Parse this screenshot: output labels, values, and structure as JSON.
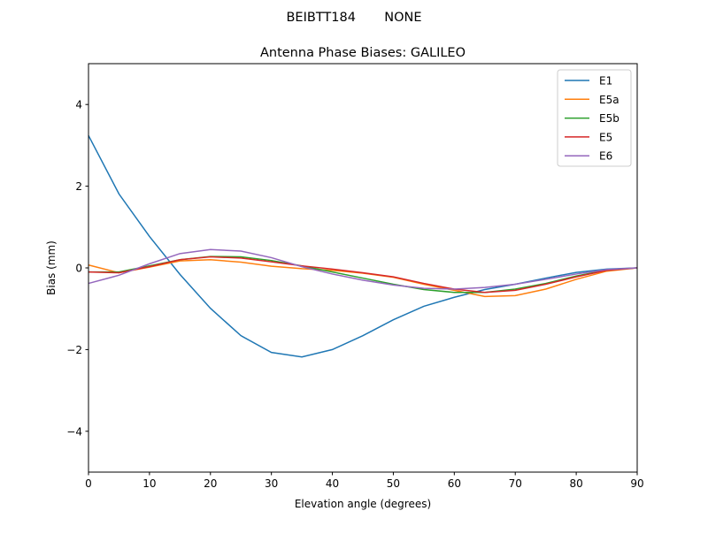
{
  "suptitle": "BEIBTT184       NONE",
  "chart_data": {
    "type": "line",
    "title": "Antenna Phase Biases: GALILEO",
    "xlabel": "Elevation angle (degrees)",
    "ylabel": "Bias (mm)",
    "xlim": [
      0,
      90
    ],
    "ylim": [
      -5,
      5
    ],
    "xticks": [
      0,
      10,
      20,
      30,
      40,
      50,
      60,
      70,
      80,
      90
    ],
    "yticks": [
      -4,
      -2,
      0,
      2,
      4
    ],
    "ytick_labels": [
      "−4",
      "−2",
      "0",
      "2",
      "4"
    ],
    "grid": false,
    "legend_position": "top-right",
    "x": [
      0,
      5,
      10,
      15,
      20,
      25,
      30,
      35,
      40,
      45,
      50,
      55,
      60,
      65,
      70,
      75,
      80,
      85,
      90
    ],
    "series": [
      {
        "name": "E1",
        "color": "#1f77b4",
        "values": [
          3.24,
          1.81,
          0.77,
          -0.16,
          -0.99,
          -1.66,
          -2.07,
          -2.18,
          -2.0,
          -1.66,
          -1.27,
          -0.94,
          -0.72,
          -0.53,
          -0.4,
          -0.25,
          -0.11,
          -0.03,
          0.0
        ]
      },
      {
        "name": "E5a",
        "color": "#ff7f0e",
        "values": [
          0.07,
          -0.12,
          0.02,
          0.17,
          0.2,
          0.14,
          0.04,
          -0.02,
          -0.06,
          -0.13,
          -0.23,
          -0.4,
          -0.55,
          -0.7,
          -0.68,
          -0.52,
          -0.28,
          -0.08,
          0.0
        ]
      },
      {
        "name": "E5b",
        "color": "#2ca02c",
        "values": [
          -0.1,
          -0.1,
          0.05,
          0.2,
          0.28,
          0.27,
          0.18,
          0.05,
          -0.1,
          -0.25,
          -0.4,
          -0.53,
          -0.6,
          -0.6,
          -0.52,
          -0.38,
          -0.2,
          -0.05,
          0.0
        ]
      },
      {
        "name": "E5",
        "color": "#d62728",
        "values": [
          -0.1,
          -0.12,
          0.03,
          0.2,
          0.27,
          0.24,
          0.15,
          0.05,
          -0.03,
          -0.12,
          -0.22,
          -0.38,
          -0.52,
          -0.6,
          -0.55,
          -0.4,
          -0.22,
          -0.06,
          0.0
        ]
      },
      {
        "name": "E6",
        "color": "#9467bd",
        "values": [
          -0.38,
          -0.18,
          0.1,
          0.35,
          0.45,
          0.41,
          0.25,
          0.03,
          -0.15,
          -0.3,
          -0.42,
          -0.5,
          -0.52,
          -0.48,
          -0.4,
          -0.28,
          -0.15,
          -0.04,
          0.0
        ]
      }
    ]
  }
}
